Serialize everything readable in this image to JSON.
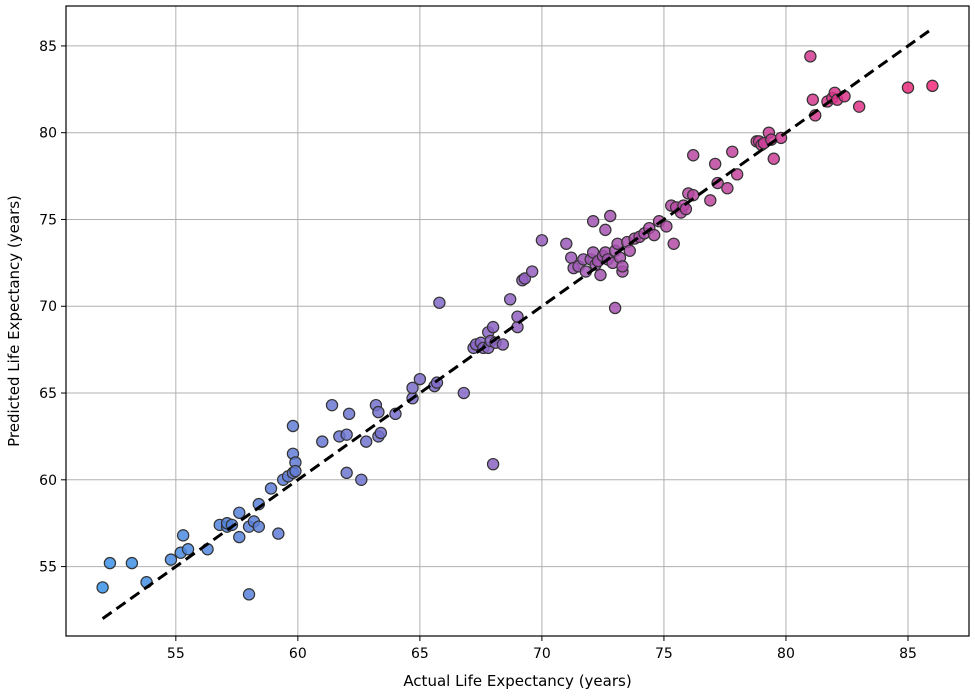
{
  "chart_data": {
    "type": "scatter",
    "title": "",
    "xlabel": "Actual Life Expectancy (years)",
    "ylabel": "Predicted Life Expectancy (years)",
    "xlim": [
      50.5,
      87.5
    ],
    "ylim": [
      51.0,
      87.3
    ],
    "xticks": [
      55,
      60,
      65,
      70,
      75,
      80,
      85
    ],
    "yticks": [
      55,
      60,
      65,
      70,
      75,
      80,
      85
    ],
    "grid": true,
    "colormap": {
      "low": "#3a93e8",
      "mid": "#9060c0",
      "high": "#f0287a"
    },
    "reference_line": {
      "label": "",
      "style": "dashed",
      "color": "#000000",
      "from": [
        52,
        52
      ],
      "to": [
        86,
        86
      ]
    },
    "points": [
      {
        "x": 52.0,
        "y": 53.8
      },
      {
        "x": 52.3,
        "y": 55.2
      },
      {
        "x": 53.2,
        "y": 55.2
      },
      {
        "x": 53.8,
        "y": 54.1
      },
      {
        "x": 54.8,
        "y": 55.4
      },
      {
        "x": 55.2,
        "y": 55.8
      },
      {
        "x": 55.3,
        "y": 56.8
      },
      {
        "x": 55.5,
        "y": 56.0
      },
      {
        "x": 56.3,
        "y": 56.0
      },
      {
        "x": 56.8,
        "y": 57.4
      },
      {
        "x": 57.1,
        "y": 57.3
      },
      {
        "x": 57.1,
        "y": 57.5
      },
      {
        "x": 57.3,
        "y": 57.4
      },
      {
        "x": 57.6,
        "y": 58.1
      },
      {
        "x": 57.6,
        "y": 56.7
      },
      {
        "x": 58.0,
        "y": 57.3
      },
      {
        "x": 58.0,
        "y": 53.4
      },
      {
        "x": 58.2,
        "y": 57.6
      },
      {
        "x": 58.4,
        "y": 57.3
      },
      {
        "x": 58.4,
        "y": 58.6
      },
      {
        "x": 58.9,
        "y": 59.5
      },
      {
        "x": 59.2,
        "y": 56.9
      },
      {
        "x": 59.4,
        "y": 60.0
      },
      {
        "x": 59.6,
        "y": 60.2
      },
      {
        "x": 59.8,
        "y": 60.4
      },
      {
        "x": 59.8,
        "y": 61.5
      },
      {
        "x": 59.9,
        "y": 61.0
      },
      {
        "x": 59.8,
        "y": 63.1
      },
      {
        "x": 59.9,
        "y": 60.5
      },
      {
        "x": 61.0,
        "y": 62.2
      },
      {
        "x": 61.4,
        "y": 64.3
      },
      {
        "x": 61.7,
        "y": 62.5
      },
      {
        "x": 62.0,
        "y": 62.6
      },
      {
        "x": 62.0,
        "y": 60.4
      },
      {
        "x": 62.1,
        "y": 63.8
      },
      {
        "x": 62.6,
        "y": 60.0
      },
      {
        "x": 62.8,
        "y": 62.2
      },
      {
        "x": 63.2,
        "y": 64.3
      },
      {
        "x": 63.3,
        "y": 63.9
      },
      {
        "x": 63.3,
        "y": 62.5
      },
      {
        "x": 63.4,
        "y": 62.7
      },
      {
        "x": 64.0,
        "y": 63.8
      },
      {
        "x": 64.7,
        "y": 64.7
      },
      {
        "x": 64.7,
        "y": 65.3
      },
      {
        "x": 65.0,
        "y": 65.8
      },
      {
        "x": 65.6,
        "y": 65.4
      },
      {
        "x": 65.7,
        "y": 65.6
      },
      {
        "x": 65.8,
        "y": 70.2
      },
      {
        "x": 66.8,
        "y": 65.0
      },
      {
        "x": 67.2,
        "y": 67.6
      },
      {
        "x": 67.3,
        "y": 67.8
      },
      {
        "x": 67.5,
        "y": 67.9
      },
      {
        "x": 67.6,
        "y": 67.6
      },
      {
        "x": 67.8,
        "y": 67.6
      },
      {
        "x": 67.8,
        "y": 68.5
      },
      {
        "x": 67.9,
        "y": 68.0
      },
      {
        "x": 68.0,
        "y": 68.8
      },
      {
        "x": 68.0,
        "y": 60.9
      },
      {
        "x": 68.1,
        "y": 67.9
      },
      {
        "x": 68.4,
        "y": 67.8
      },
      {
        "x": 68.7,
        "y": 70.4
      },
      {
        "x": 69.0,
        "y": 68.8
      },
      {
        "x": 69.0,
        "y": 69.4
      },
      {
        "x": 69.2,
        "y": 71.5
      },
      {
        "x": 69.3,
        "y": 71.6
      },
      {
        "x": 69.6,
        "y": 72.0
      },
      {
        "x": 70.0,
        "y": 73.8
      },
      {
        "x": 71.0,
        "y": 73.6
      },
      {
        "x": 71.2,
        "y": 72.8
      },
      {
        "x": 71.3,
        "y": 72.2
      },
      {
        "x": 71.5,
        "y": 72.3
      },
      {
        "x": 71.7,
        "y": 72.7
      },
      {
        "x": 71.8,
        "y": 72.0
      },
      {
        "x": 72.0,
        "y": 72.7
      },
      {
        "x": 72.1,
        "y": 73.1
      },
      {
        "x": 72.1,
        "y": 74.9
      },
      {
        "x": 72.2,
        "y": 72.4
      },
      {
        "x": 72.3,
        "y": 72.6
      },
      {
        "x": 72.4,
        "y": 71.8
      },
      {
        "x": 72.5,
        "y": 72.9
      },
      {
        "x": 72.6,
        "y": 73.1
      },
      {
        "x": 72.6,
        "y": 74.4
      },
      {
        "x": 72.7,
        "y": 72.7
      },
      {
        "x": 72.8,
        "y": 75.2
      },
      {
        "x": 72.9,
        "y": 72.5
      },
      {
        "x": 73.0,
        "y": 73.2
      },
      {
        "x": 73.0,
        "y": 69.9
      },
      {
        "x": 73.1,
        "y": 73.6
      },
      {
        "x": 73.2,
        "y": 72.8
      },
      {
        "x": 73.3,
        "y": 72.0
      },
      {
        "x": 73.3,
        "y": 72.3
      },
      {
        "x": 73.5,
        "y": 73.7
      },
      {
        "x": 73.6,
        "y": 73.2
      },
      {
        "x": 73.8,
        "y": 73.9
      },
      {
        "x": 74.0,
        "y": 74.0
      },
      {
        "x": 74.2,
        "y": 74.2
      },
      {
        "x": 74.4,
        "y": 74.5
      },
      {
        "x": 74.6,
        "y": 74.1
      },
      {
        "x": 74.8,
        "y": 74.9
      },
      {
        "x": 75.1,
        "y": 74.6
      },
      {
        "x": 75.3,
        "y": 75.8
      },
      {
        "x": 75.4,
        "y": 73.6
      },
      {
        "x": 75.5,
        "y": 75.7
      },
      {
        "x": 75.7,
        "y": 75.4
      },
      {
        "x": 75.8,
        "y": 75.8
      },
      {
        "x": 75.9,
        "y": 75.6
      },
      {
        "x": 76.0,
        "y": 76.5
      },
      {
        "x": 76.2,
        "y": 76.4
      },
      {
        "x": 76.2,
        "y": 78.7
      },
      {
        "x": 76.9,
        "y": 76.1
      },
      {
        "x": 77.1,
        "y": 78.2
      },
      {
        "x": 77.2,
        "y": 77.1
      },
      {
        "x": 77.6,
        "y": 76.8
      },
      {
        "x": 77.8,
        "y": 78.9
      },
      {
        "x": 78.0,
        "y": 77.6
      },
      {
        "x": 78.8,
        "y": 79.5
      },
      {
        "x": 78.9,
        "y": 79.5
      },
      {
        "x": 79.0,
        "y": 79.3
      },
      {
        "x": 79.1,
        "y": 79.4
      },
      {
        "x": 79.3,
        "y": 80.0
      },
      {
        "x": 79.4,
        "y": 79.6
      },
      {
        "x": 79.5,
        "y": 78.5
      },
      {
        "x": 79.8,
        "y": 79.7
      },
      {
        "x": 81.0,
        "y": 84.4
      },
      {
        "x": 81.1,
        "y": 81.9
      },
      {
        "x": 81.2,
        "y": 81.0
      },
      {
        "x": 81.7,
        "y": 81.8
      },
      {
        "x": 81.9,
        "y": 82.0
      },
      {
        "x": 82.0,
        "y": 82.3
      },
      {
        "x": 82.1,
        "y": 81.9
      },
      {
        "x": 82.4,
        "y": 82.1
      },
      {
        "x": 83.0,
        "y": 81.5
      },
      {
        "x": 85.0,
        "y": 82.6
      },
      {
        "x": 86.0,
        "y": 82.7
      }
    ]
  }
}
